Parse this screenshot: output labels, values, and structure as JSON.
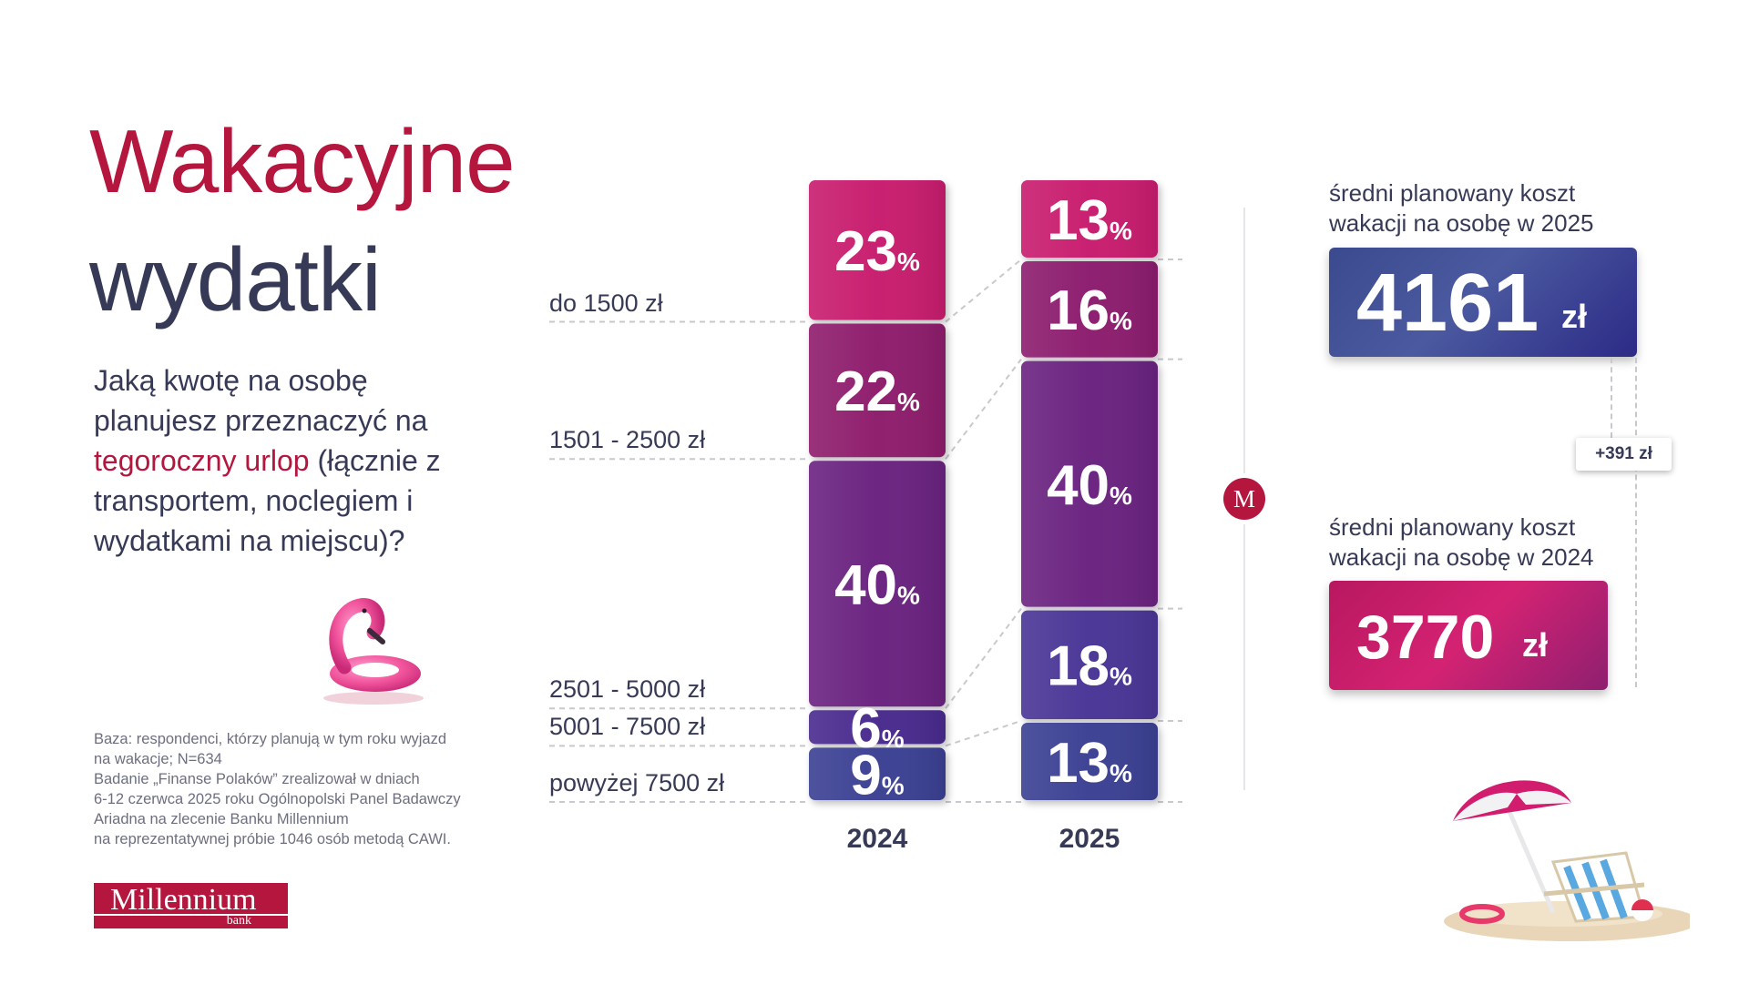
{
  "title": {
    "line1": "Wakacyjne",
    "line2": "wydatki"
  },
  "question": {
    "part1": "Jaką kwotę na osobę planujesz przeznaczyć na ",
    "highlight": "tegoroczny urlop",
    "part2": " (łącznie z transportem, noclegiem i wydatkami na miejscu)?"
  },
  "footnote": [
    "Baza: respondenci, którzy planują w tym roku wyjazd",
    "na wakacje; N=634",
    "Badanie „Finanse Polaków” zrealizował w dniach",
    "6-12 czerwca 2025 roku Ogólnopolski Panel Badawczy",
    "Ariadna na zlecenie Banku Millennium",
    "na reprezentatywnej próbie 1046 osób metodą CAWI."
  ],
  "logo": {
    "name": "Millennium",
    "sub": "bank"
  },
  "chart_data": {
    "type": "bar",
    "stacked": true,
    "title": "Wakacyjne wydatki",
    "unit": "%",
    "categories": [
      "do 1500 zł",
      "1501 - 2500 zł",
      "2501 - 5000 zł",
      "5001 - 7500 zł",
      "powyżej 7500 zł"
    ],
    "series": [
      {
        "name": "2024",
        "values": [
          23,
          22,
          40,
          6,
          9
        ]
      },
      {
        "name": "2025",
        "values": [
          13,
          16,
          40,
          18,
          13
        ]
      }
    ],
    "colors_2024": [
      "#c81a6e",
      "#8e1f6c",
      "#6a2480",
      "#4a2a8e",
      "#3a3f93"
    ],
    "colors_2025": [
      "#c81a6e",
      "#8c1f6e",
      "#6a2480",
      "#4a3596",
      "#3a3f93"
    ]
  },
  "cost_2025": {
    "label_line1": "średni planowany koszt",
    "label_line2": "wakacji na osobę w 2025",
    "value": "4161",
    "unit": "zł"
  },
  "cost_2024": {
    "label_line1": "średni planowany koszt",
    "label_line2": "wakacji na osobę w 2024",
    "value": "3770",
    "unit": "zł"
  },
  "difference": "+391 zł",
  "m_icon": "M"
}
